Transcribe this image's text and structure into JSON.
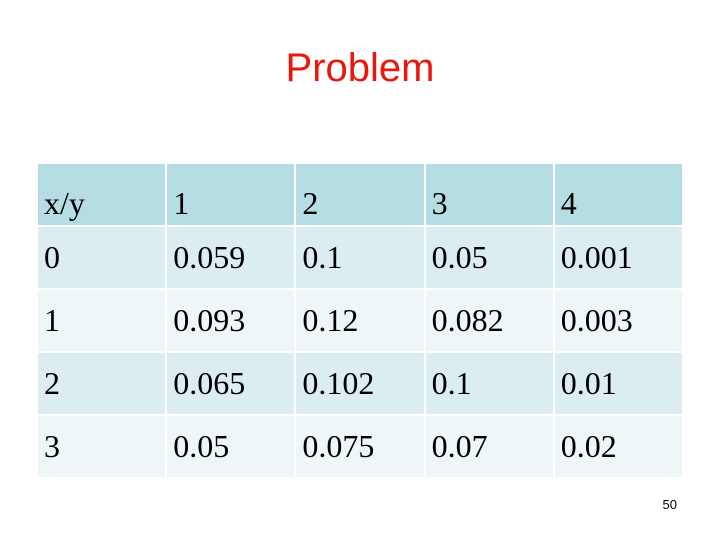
{
  "slide": {
    "title": "Problem",
    "page_number": "50"
  },
  "table": {
    "headers": [
      "x/y",
      "1",
      "2",
      "3",
      "4"
    ],
    "rows": [
      [
        "0",
        "0.059",
        "0.1",
        "0.05",
        "0.001"
      ],
      [
        "1",
        "0.093",
        "0.12",
        "0.082",
        "0.003"
      ],
      [
        "2",
        "0.065",
        "0.102",
        "0.1",
        "0.01"
      ],
      [
        "3",
        "0.05",
        "0.075",
        "0.07",
        "0.02"
      ]
    ],
    "colors": {
      "header_bg": "#b7dde4",
      "row_odd_bg": "#dcedf1",
      "row_even_bg": "#eef6f8",
      "title_color": "#e8190c"
    }
  }
}
